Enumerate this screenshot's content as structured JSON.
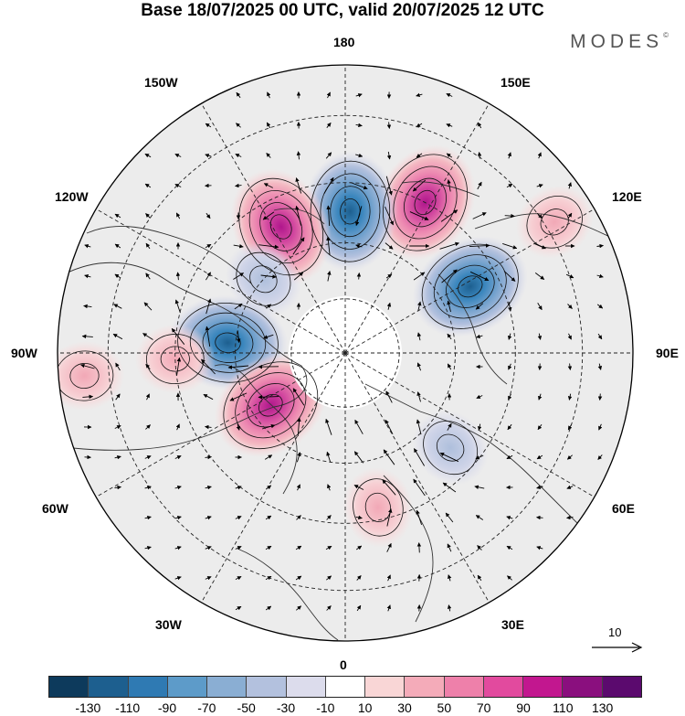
{
  "title": "Base 18/07/2025 00 UTC, valid 20/07/2025 12 UTC",
  "brand": "MODES",
  "brand_mark": "©",
  "longitude_labels": {
    "top": "180",
    "top_left": "150W",
    "top_right": "150E",
    "upper_left": "120W",
    "upper_right": "120E",
    "left": "90W",
    "right": "90E",
    "lower_left": "60W",
    "lower_right": "60E",
    "bottom_left": "30W",
    "bottom_right": "30E",
    "bottom": "0"
  },
  "reference_vector": {
    "label": "10"
  },
  "colorbar": {
    "colors": [
      "#0d3a5c",
      "#1d5f8f",
      "#2f7ab3",
      "#5d9bc9",
      "#8aaed3",
      "#b3c1de",
      "#dcdcec",
      "#ffffff",
      "#f9d6d6",
      "#f4abb9",
      "#ee80aa",
      "#e24a9e",
      "#c2178f",
      "#8a0f7e",
      "#5b0a6e"
    ],
    "tick_labels": [
      "-130",
      "-110",
      "-90",
      "-70",
      "-50",
      "-30",
      "-10",
      "10",
      "30",
      "50",
      "70",
      "90",
      "110",
      "130"
    ]
  },
  "anomaly_centers": [
    {
      "sign": "positive",
      "level": 4,
      "lon": 152,
      "lat": 45
    },
    {
      "sign": "negative",
      "level": 4,
      "lon": 178,
      "lat": 52
    },
    {
      "sign": "positive",
      "level": 4,
      "lon": -153,
      "lat": 52
    },
    {
      "sign": "negative",
      "level": 1,
      "lon": -132,
      "lat": 60
    },
    {
      "sign": "negative",
      "level": 3,
      "lon": 118,
      "lat": 52
    },
    {
      "sign": "negative",
      "level": 4,
      "lon": -95,
      "lat": 58
    },
    {
      "sign": "positive",
      "level": 2,
      "lon": -88,
      "lat": 45
    },
    {
      "sign": "positive",
      "level": 4,
      "lon": -55,
      "lat": 65
    },
    {
      "sign": "negative",
      "level": 2,
      "lon": 48,
      "lat": 52
    },
    {
      "sign": "positive",
      "level": 2,
      "lon": 12,
      "lat": 48
    },
    {
      "sign": "positive",
      "level": 2,
      "lon": -85,
      "lat": 25
    },
    {
      "sign": "positive",
      "level": 1,
      "lon": 122,
      "lat": 28
    }
  ]
}
